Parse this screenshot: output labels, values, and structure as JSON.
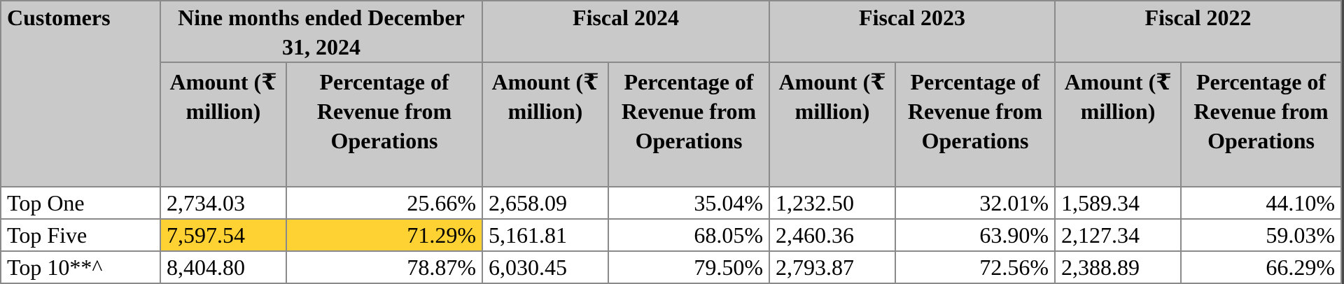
{
  "table": {
    "header": {
      "customers": "Customers",
      "periods": [
        "Nine months ended December 31, 2024",
        "Fiscal 2024",
        "Fiscal 2023",
        "Fiscal 2022"
      ],
      "subheaders": [
        [
          "Amount (₹ million)",
          "Percentage of Revenue from Operations"
        ],
        [
          "Amount (₹ million)",
          "Percentage of Revenue from Operations"
        ],
        [
          "Amount (₹ million)",
          "Percentage of Revenue from Operations"
        ],
        [
          "Amount (₹ million)",
          "Percentage of Revenue from Operations"
        ]
      ]
    },
    "rows": [
      {
        "label": "Top One",
        "cells": [
          "2,734.03",
          "25.66%",
          "2,658.09",
          "35.04%",
          "1,232.50",
          "32.01%",
          "1,589.34",
          "44.10%"
        ]
      },
      {
        "label": "Top Five",
        "cells": [
          "7,597.54",
          "71.29%",
          "5,161.81",
          "68.05%",
          "2,460.36",
          "63.90%",
          "2,127.34",
          "59.03%"
        ]
      },
      {
        "label": "Top 10**^",
        "cells": [
          "8,404.80",
          "78.87%",
          "6,030.45",
          "79.50%",
          "2,793.87",
          "72.56%",
          "2,388.89",
          "66.29%"
        ]
      }
    ],
    "highlight_color": "#ffd233",
    "header_bg": "#c9c9c9"
  }
}
